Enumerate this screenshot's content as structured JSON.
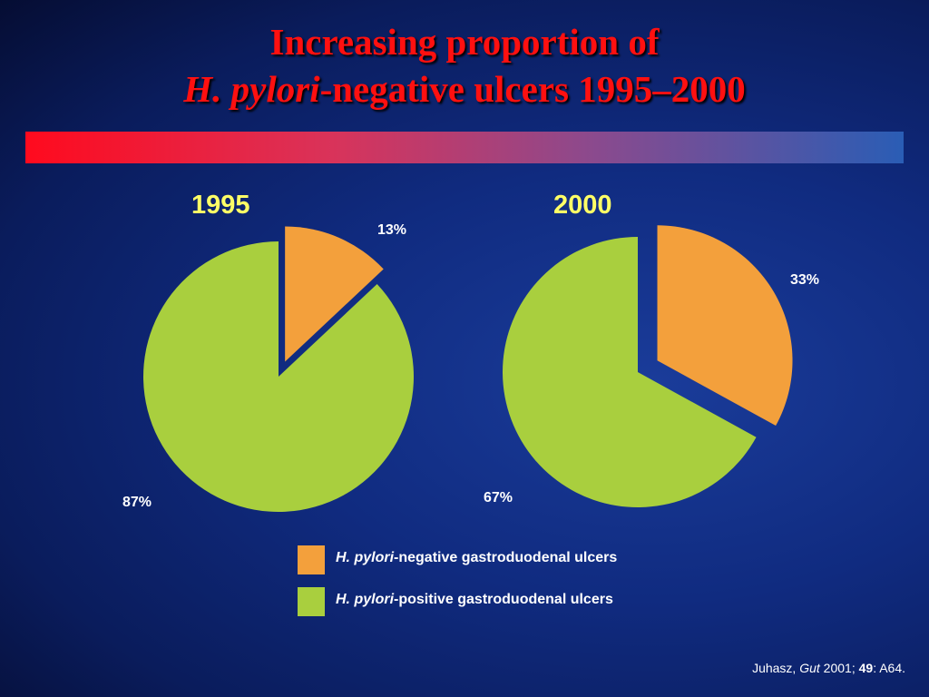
{
  "title": {
    "line1": "Increasing proportion of",
    "line2_italic": "H. pylori",
    "line2_rest": "-negative ulcers 1995–2000"
  },
  "colors": {
    "negative": "#f3a03c",
    "positive": "#a9cf3e",
    "title_red": "#ff1010",
    "year_yellow": "#ffff66"
  },
  "chart_data": [
    {
      "type": "pie",
      "title": "1995",
      "categories": [
        "H. pylori-negative gastroduodenal ulcers",
        "H. pylori-positive gastroduodenal ulcers"
      ],
      "values": [
        13,
        87
      ],
      "labels": [
        "13%",
        "87%"
      ],
      "exploded": "negative"
    },
    {
      "type": "pie",
      "title": "2000",
      "categories": [
        "H. pylori-negative gastroduodenal ulcers",
        "H. pylori-positive gastroduodenal ulcers"
      ],
      "values": [
        33,
        67
      ],
      "labels": [
        "33%",
        "67%"
      ],
      "exploded": "negative"
    }
  ],
  "legend": [
    {
      "italic": "H. pylori",
      "rest": "-negative gastroduodenal ulcers",
      "color": "#f3a03c"
    },
    {
      "italic": "H. pylori",
      "rest": "-positive gastroduodenal ulcers",
      "color": "#a9cf3e"
    }
  ],
  "citation": {
    "author": "Juhasz, ",
    "journal": "Gut",
    "year": " 2001; ",
    "volume": "49",
    "pages": ": A64."
  }
}
